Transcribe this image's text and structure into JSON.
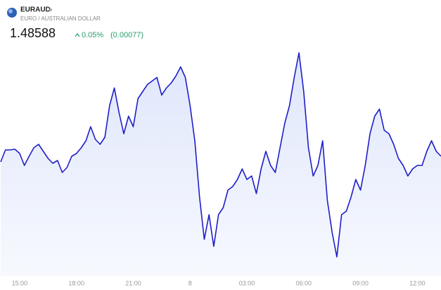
{
  "chart_data": {
    "type": "line",
    "title": "EURAUD",
    "subtitle": "EURO / AUSTRALIAN DOLLAR",
    "price": "1.48588",
    "change_pct": "0.05%",
    "change": "(0.00077)",
    "color": "#1f1fc8",
    "categories": [
      null,
      null,
      null,
      null,
      "15:00",
      null,
      null,
      null,
      null,
      null,
      null,
      null,
      null,
      null,
      null,
      null,
      "18:00",
      null,
      null,
      null,
      null,
      null,
      null,
      null,
      null,
      null,
      null,
      null,
      "21:00",
      null,
      null,
      null,
      null,
      null,
      null,
      null,
      null,
      null,
      null,
      null,
      "8",
      null,
      null,
      null,
      null,
      null,
      null,
      null,
      null,
      null,
      null,
      null,
      "03:00",
      null,
      null,
      null,
      null,
      null,
      null,
      null,
      null,
      null,
      null,
      null,
      "06:00",
      null,
      null,
      null,
      null,
      null,
      null,
      null,
      null,
      null,
      null,
      null,
      "09:00",
      null,
      null,
      null,
      null,
      null,
      null,
      null,
      null,
      null,
      null,
      null,
      "12:00",
      null,
      null,
      null,
      null,
      null
    ],
    "values": [
      1.48564,
      1.48615,
      1.48615,
      1.48618,
      1.486,
      1.48549,
      1.48588,
      1.48624,
      1.48639,
      1.48609,
      1.48579,
      1.48558,
      1.4857,
      1.48519,
      1.4854,
      1.48588,
      1.486,
      1.48624,
      1.48654,
      1.48714,
      1.4866,
      1.48639,
      1.48669,
      1.48804,
      1.48879,
      1.48774,
      1.48684,
      1.48759,
      1.48714,
      1.48834,
      1.48864,
      1.48894,
      1.48909,
      1.48924,
      1.48849,
      1.48879,
      1.489,
      1.4893,
      1.48969,
      1.48924,
      1.48804,
      1.48654,
      1.48414,
      1.48234,
      1.48339,
      1.48204,
      1.48339,
      1.48369,
      1.48444,
      1.48459,
      1.48489,
      1.48534,
      1.48489,
      1.48504,
      1.48429,
      1.48534,
      1.48609,
      1.48549,
      1.48519,
      1.48624,
      1.48729,
      1.48804,
      1.48924,
      1.49029,
      1.48864,
      1.48624,
      1.48504,
      1.48549,
      1.48654,
      1.48399,
      1.48264,
      1.48159,
      1.48339,
      1.48354,
      1.48414,
      1.48489,
      1.48444,
      1.48549,
      1.48684,
      1.48759,
      1.48789,
      1.48699,
      1.48684,
      1.48639,
      1.48579,
      1.48549,
      1.48504,
      1.48534,
      1.48549,
      1.48549,
      1.48609,
      1.48654,
      1.48609,
      1.48588
    ]
  }
}
